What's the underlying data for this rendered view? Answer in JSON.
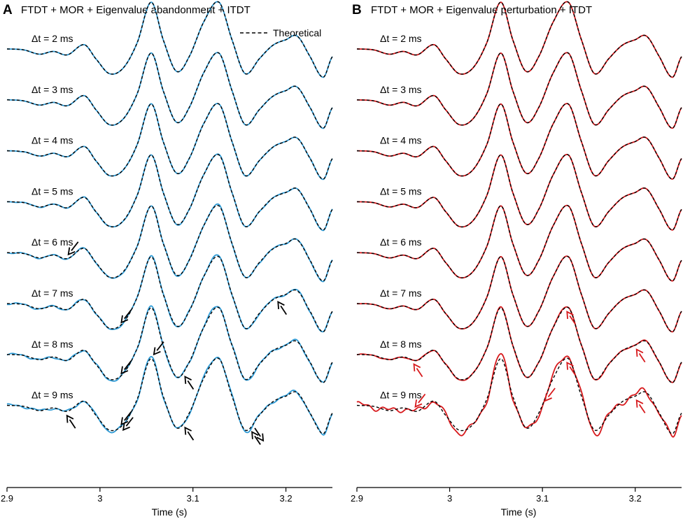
{
  "chart_data": [
    {
      "type": "line",
      "panel": "A",
      "title": "FTDT + MOR + Eigenvalue abandonment + ITDT",
      "xlabel": "Time (s)",
      "xlim": [
        2.9,
        3.25
      ],
      "xticks": [
        "2.9",
        "3",
        "3.1",
        "3.2"
      ],
      "xtick_values": [
        2.9,
        3.0,
        3.1,
        3.2
      ],
      "legend": [
        "Theoretical"
      ],
      "series_color": "#2e9bd6",
      "theoretical_color": "#000000",
      "traces": [
        {
          "label": "Δt = 2 ms",
          "dt": "2",
          "error": 0.0
        },
        {
          "label": "Δt = 3 ms",
          "dt": "3",
          "error": 0.004
        },
        {
          "label": "Δt = 4 ms",
          "dt": "4",
          "error": 0.008
        },
        {
          "label": "Δt = 5 ms",
          "dt": "5",
          "error": 0.014
        },
        {
          "label": "Δt = 6 ms",
          "dt": "6",
          "error": 0.022
        },
        {
          "label": "Δt = 7 ms",
          "dt": "7",
          "error": 0.03
        },
        {
          "label": "Δt = 8 ms",
          "dt": "8",
          "error": 0.04
        },
        {
          "label": "Δt = 9 ms",
          "dt": "9",
          "error": 0.05
        }
      ],
      "arrows": [
        {
          "trace": 4,
          "t": 2.963,
          "dir": "up"
        },
        {
          "trace": 5,
          "t": 3.02,
          "dir": "up"
        },
        {
          "trace": 5,
          "t": 3.19,
          "dir": "down"
        },
        {
          "trace": 6,
          "t": 3.02,
          "dir": "up"
        },
        {
          "trace": 6,
          "t": 3.09,
          "dir": "down"
        },
        {
          "trace": 7,
          "t": 2.963,
          "dir": "down"
        },
        {
          "trace": 7,
          "t": 3.02,
          "dir": "up"
        },
        {
          "trace": 7,
          "t": 3.055,
          "dir": "up"
        },
        {
          "trace": 7,
          "t": 3.09,
          "dir": "down"
        },
        {
          "trace": 7,
          "t": 3.162,
          "dir": "down"
        },
        {
          "trace": 7,
          "t": 3.022,
          "dir": "upbottom"
        },
        {
          "trace": 7,
          "t": 3.165,
          "dir": "downbottom"
        }
      ]
    },
    {
      "type": "line",
      "panel": "B",
      "title": "FTDT + MOR + Eigenvalue perturbation + ITDT",
      "xlabel": "Time (s)",
      "xlim": [
        2.9,
        3.25
      ],
      "xticks": [
        "2.9",
        "3",
        "3.1",
        "3.2"
      ],
      "xtick_values": [
        2.9,
        3.0,
        3.1,
        3.2
      ],
      "series_color": "#d7191c",
      "theoretical_color": "#000000",
      "traces": [
        {
          "label": "Δt = 2 ms",
          "dt": "2",
          "error": 0.0
        },
        {
          "label": "Δt = 3 ms",
          "dt": "3",
          "error": 0.0
        },
        {
          "label": "Δt = 4 ms",
          "dt": "4",
          "error": 0.0
        },
        {
          "label": "Δt = 5 ms",
          "dt": "5",
          "error": 0.0
        },
        {
          "label": "Δt = 6 ms",
          "dt": "6",
          "error": 0.0
        },
        {
          "label": "Δt = 7 ms",
          "dt": "7",
          "error": 0.004
        },
        {
          "label": "Δt = 8 ms",
          "dt": "8",
          "error": 0.02
        },
        {
          "label": "Δt = 9 ms",
          "dt": "9",
          "error": 0.12
        }
      ],
      "arrows": [
        {
          "trace": 6,
          "t": 3.125,
          "dir": "down"
        },
        {
          "trace": 6,
          "t": 2.96,
          "dir": "down"
        },
        {
          "trace": 6,
          "t": 3.2,
          "dir": "down"
        },
        {
          "trace": 7,
          "t": 3.125,
          "dir": "down"
        },
        {
          "trace": 7,
          "t": 3.2,
          "dir": "down"
        },
        {
          "trace": 7,
          "t": 2.96,
          "dir": "up"
        },
        {
          "trace": 7,
          "t": 3.1,
          "dir": "up"
        }
      ]
    }
  ],
  "panel_letters": [
    "A",
    "B"
  ]
}
